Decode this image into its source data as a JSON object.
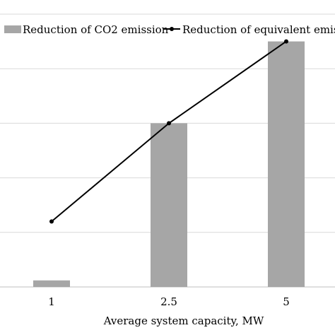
{
  "chart_data": {
    "type": "bar",
    "categories": [
      "1",
      "2.5",
      "5"
    ],
    "series": [
      {
        "name": "Reduction of CO2 emission",
        "kind": "bar",
        "color": "#a6a6a6",
        "values": [
          0.12,
          3.0,
          4.5
        ]
      },
      {
        "name": "Reduction of equivalent emissi",
        "kind": "line",
        "color": "#000000",
        "values": [
          1.2,
          3.0,
          4.5
        ]
      }
    ],
    "xlabel": "Average system capacity, MW",
    "ylabel": "",
    "ylim": [
      0,
      5
    ],
    "grid": true,
    "legend_position": "top"
  }
}
